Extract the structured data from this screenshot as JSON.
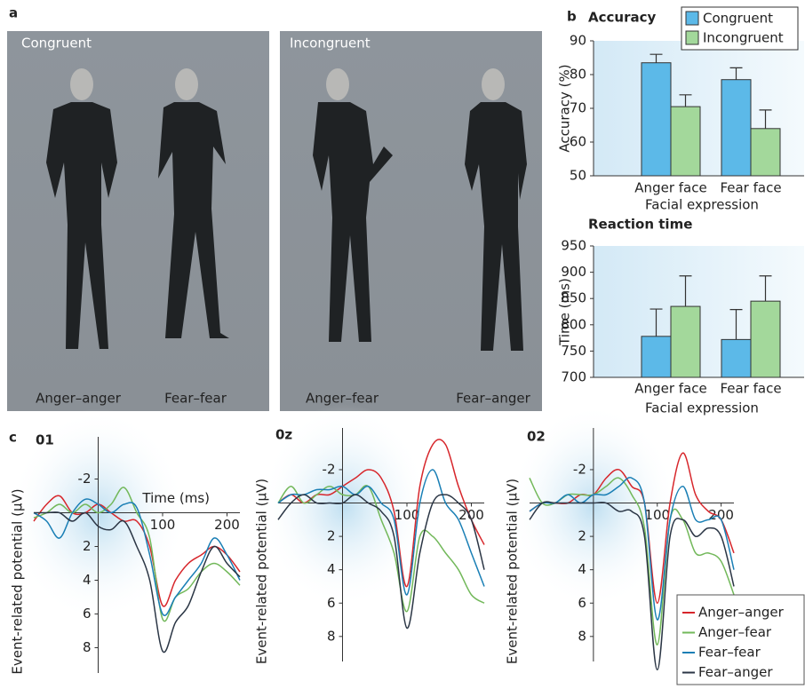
{
  "panel_labels": [
    "a",
    "b",
    "c"
  ],
  "photos": [
    {
      "title": "Congruent",
      "captions": [
        "Anger–anger",
        "Fear–fear"
      ]
    },
    {
      "title": "Incongruent",
      "captions": [
        "Anger–fear",
        "Fear–anger"
      ]
    }
  ],
  "chart_data": [
    {
      "type": "bar",
      "title": "Accuracy",
      "categories": [
        "Anger face",
        "Fear face"
      ],
      "xlabel": "Facial expression",
      "ylabel": "Accuracy (%)",
      "ylim": [
        50,
        90
      ],
      "yticks": [
        50,
        60,
        70,
        80,
        90
      ],
      "legend": "top-right",
      "series": [
        {
          "name": "Congruent",
          "color": "#5cb9e8",
          "values": [
            83.5,
            78.5
          ],
          "errors": [
            2.5,
            3.5
          ]
        },
        {
          "name": "Incongruent",
          "color": "#a3d89b",
          "values": [
            70.5,
            64
          ],
          "errors": [
            3.5,
            5.5
          ]
        }
      ]
    },
    {
      "type": "bar",
      "title": "Reaction time",
      "categories": [
        "Anger face",
        "Fear face"
      ],
      "xlabel": "Facial expression",
      "ylabel": "Time (ms)",
      "ylim": [
        700,
        950
      ],
      "yticks": [
        700,
        750,
        800,
        850,
        900,
        950
      ],
      "series": [
        {
          "color": "#5cb9e8",
          "values": [
            778,
            772
          ],
          "errors": [
            52,
            57
          ]
        },
        {
          "color": "#a3d89b",
          "values": [
            835,
            845
          ],
          "errors": [
            58,
            48
          ]
        }
      ]
    },
    {
      "type": "line",
      "title": "01",
      "xlabel": "Time (ms)",
      "ylabel": "Event-related potential (μV)",
      "x": [
        -100,
        -80,
        -60,
        -40,
        -20,
        0,
        20,
        40,
        60,
        80,
        100,
        120,
        140,
        160,
        180,
        200,
        220
      ],
      "xlim": [
        -100,
        220
      ],
      "xticks": [
        100,
        200
      ],
      "ylim": [
        -4.5,
        9.5
      ],
      "yticks": [
        -2,
        2,
        4,
        6,
        8
      ],
      "y_inverted": true,
      "series": [
        {
          "name": "Anger–anger",
          "color": "#d7262b",
          "values": [
            0.5,
            -0.5,
            -1,
            0,
            0,
            -0.5,
            0,
            0.5,
            0.5,
            2,
            5.5,
            4,
            3,
            2.5,
            2,
            2.5,
            3.5
          ]
        },
        {
          "name": "Anger–fear",
          "color": "#72b85a",
          "values": [
            0.3,
            0,
            -0.5,
            0,
            -0.5,
            0,
            -0.5,
            -1.5,
            0,
            1.5,
            6.3,
            5,
            4.5,
            3.5,
            3,
            3.5,
            4.3
          ]
        },
        {
          "name": "Fear–fear",
          "color": "#1a7fb5",
          "values": [
            0,
            0.5,
            1.5,
            0,
            -0.8,
            -0.5,
            0,
            -0.5,
            -0.3,
            2.5,
            6,
            5,
            4,
            3,
            1.5,
            2.5,
            4
          ]
        },
        {
          "name": "Fear–anger",
          "color": "#2b3645",
          "values": [
            0,
            0,
            0,
            0.5,
            0,
            0.8,
            1,
            0.5,
            2,
            4,
            8.2,
            6.5,
            5.5,
            3.5,
            2,
            3,
            3.8
          ]
        }
      ]
    },
    {
      "type": "line",
      "title": "0z",
      "ylabel": "Event-related potential (μV)",
      "x": [
        -100,
        -80,
        -60,
        -40,
        -20,
        0,
        20,
        40,
        60,
        80,
        100,
        120,
        140,
        160,
        180,
        200,
        220
      ],
      "xlim": [
        -100,
        220
      ],
      "xticks": [
        100,
        200
      ],
      "ylim": [
        -4.5,
        9.5
      ],
      "yticks": [
        -2,
        2,
        4,
        6,
        8
      ],
      "y_inverted": true,
      "series": [
        {
          "name": "Anger–anger",
          "color": "#d7262b",
          "values": [
            0,
            -0.5,
            0,
            -0.5,
            -0.5,
            -1,
            -1.5,
            -2,
            -1.5,
            0.5,
            5,
            -1,
            -3.5,
            -3.5,
            -1,
            1,
            2.5
          ]
        },
        {
          "name": "Anger–fear",
          "color": "#72b85a",
          "values": [
            0,
            -1,
            0,
            -0.5,
            -1,
            -0.5,
            -0.5,
            -1,
            1,
            3,
            6.5,
            2,
            2,
            3,
            4,
            5.5,
            6
          ]
        },
        {
          "name": "Fear–fear",
          "color": "#1a7fb5",
          "values": [
            0,
            -0.5,
            -0.5,
            -0.8,
            -0.8,
            -1,
            -0.5,
            -1,
            0,
            1,
            5.5,
            0,
            -2,
            0,
            1,
            3,
            5
          ]
        },
        {
          "name": "Fear–anger",
          "color": "#2b3645",
          "values": [
            1,
            0,
            -0.5,
            0,
            0,
            0,
            -0.5,
            0,
            0.5,
            2,
            7.5,
            3,
            0,
            -0.5,
            0,
            1,
            4
          ]
        }
      ]
    },
    {
      "type": "line",
      "title": "02",
      "ylabel": "Event-related potential (μV)",
      "x": [
        -100,
        -80,
        -60,
        -40,
        -20,
        0,
        20,
        40,
        60,
        80,
        100,
        120,
        140,
        160,
        180,
        200,
        220
      ],
      "xlim": [
        -100,
        220
      ],
      "xticks": [
        100,
        200
      ],
      "ylim": [
        -4.5,
        9.5
      ],
      "yticks": [
        -2,
        2,
        4,
        6,
        8
      ],
      "y_inverted": true,
      "legend": "bottom-right",
      "series": [
        {
          "name": "Anger–anger",
          "color": "#d7262b",
          "values": [
            0.5,
            0,
            0,
            0,
            -0.5,
            -0.5,
            -1.5,
            -2,
            -1,
            0,
            6,
            0,
            -3,
            -0.5,
            0.5,
            1,
            3
          ]
        },
        {
          "name": "Anger–fear",
          "color": "#72b85a",
          "values": [
            -1.5,
            0,
            0,
            -0.5,
            -0.5,
            -0.5,
            -1,
            -1.5,
            -0.5,
            1.5,
            8.5,
            1,
            1,
            3,
            3,
            3.5,
            5.5
          ]
        },
        {
          "name": "Fear–fear",
          "color": "#1a7fb5",
          "values": [
            0.5,
            0,
            0,
            -0.5,
            0,
            -0.5,
            -0.5,
            -1,
            -1.5,
            0,
            7,
            1,
            -1,
            1,
            1,
            1,
            4
          ]
        },
        {
          "name": "Fear–anger",
          "color": "#2b3645",
          "values": [
            1,
            0,
            0,
            0,
            0,
            0,
            0,
            0.5,
            0.5,
            2,
            10,
            2,
            1,
            2,
            1.5,
            2,
            5
          ]
        }
      ]
    }
  ]
}
